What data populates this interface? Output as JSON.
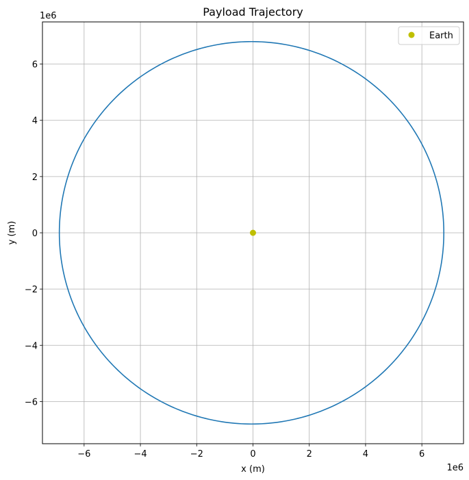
{
  "chart_data": {
    "type": "line",
    "title": "Payload Trajectory",
    "xlabel": "x (m)",
    "ylabel": "y (m)",
    "x_offset_label": "1e6",
    "y_offset_label": "1e6",
    "xlim": [
      -7.48,
      7.48
    ],
    "ylim": [
      -7.5,
      7.5
    ],
    "x_ticks": [
      -6,
      -4,
      -2,
      0,
      2,
      4,
      6
    ],
    "y_ticks": [
      -6,
      -4,
      -2,
      0,
      2,
      4,
      6
    ],
    "x_tick_labels": [
      "−6",
      "−4",
      "−2",
      "0",
      "2",
      "4",
      "6"
    ],
    "y_tick_labels": [
      "−6",
      "−4",
      "−2",
      "0",
      "2",
      "4",
      "6"
    ],
    "scale": 1000000,
    "grid": true,
    "legend_position": "top-right",
    "series": [
      {
        "kind": "orbit",
        "color": "#1f77b4",
        "center": [
          -0.05,
          0
        ],
        "radius_x": 6.83,
        "radius_y": 6.8
      },
      {
        "name": "Earth",
        "kind": "point",
        "color": "#bfbf00",
        "x": 0,
        "y": 0
      }
    ],
    "legend": [
      {
        "label": "Earth",
        "color": "#bfbf00",
        "marker": "circle"
      }
    ]
  }
}
